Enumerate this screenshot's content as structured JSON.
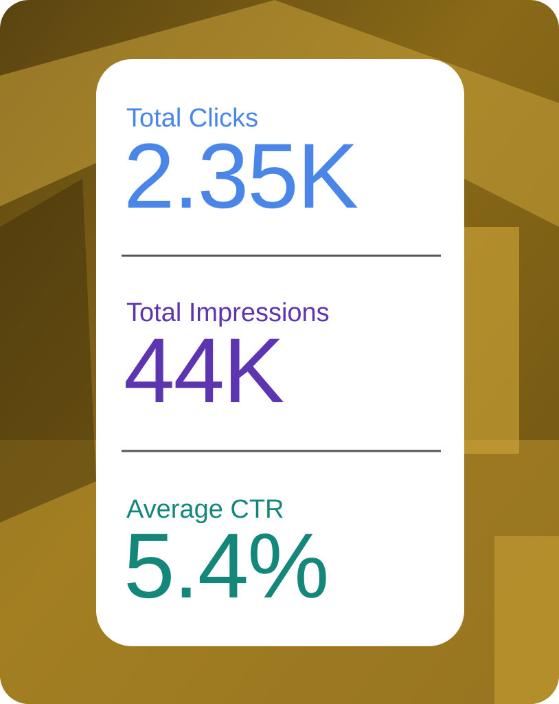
{
  "metrics": [
    {
      "label": "Total Clicks",
      "value": "2.35K"
    },
    {
      "label": "Total Impressions",
      "value": "44K"
    },
    {
      "label": "Average CTR",
      "value": "5.4%"
    }
  ]
}
